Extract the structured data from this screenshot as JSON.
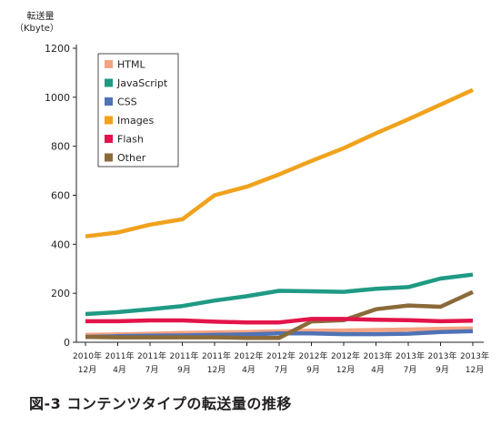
{
  "caption": "図-3 コンテンツタイプの転送量の推移",
  "chart_data": {
    "type": "line",
    "ylabel_line1": "転送量",
    "ylabel_line2": "（Kbyte）",
    "ylim": [
      0,
      1200
    ],
    "yticks": [
      0,
      200,
      400,
      600,
      800,
      1000,
      1200
    ],
    "grid": false,
    "legend_position": "top-left",
    "categories": [
      {
        "year": "2010年",
        "month": "12月"
      },
      {
        "year": "2011年",
        "month": "4月"
      },
      {
        "year": "2011年",
        "month": "7月"
      },
      {
        "year": "2011年",
        "month": "9月"
      },
      {
        "year": "2011年",
        "month": "12月"
      },
      {
        "year": "2012年",
        "month": "4月"
      },
      {
        "year": "2012年",
        "month": "7月"
      },
      {
        "year": "2012年",
        "month": "9月"
      },
      {
        "year": "2012年",
        "month": "12月"
      },
      {
        "year": "2013年",
        "month": "4月"
      },
      {
        "year": "2013年",
        "month": "7月"
      },
      {
        "year": "2013年",
        "month": "9月"
      },
      {
        "year": "2013年",
        "month": "12月"
      }
    ],
    "series": [
      {
        "name": "HTML",
        "color": "#f4a382",
        "values": [
          30,
          32,
          35,
          38,
          40,
          42,
          45,
          47,
          48,
          50,
          52,
          55,
          57
        ]
      },
      {
        "name": "JavaScript",
        "color": "#1f9a84",
        "values": [
          115,
          123,
          135,
          148,
          170,
          188,
          210,
          208,
          206,
          218,
          225,
          260,
          276
        ]
      },
      {
        "name": "CSS",
        "color": "#4f73b5",
        "values": [
          22,
          25,
          27,
          28,
          30,
          32,
          36,
          36,
          33,
          33,
          35,
          42,
          45
        ]
      },
      {
        "name": "Images",
        "color": "#f0a21d",
        "values": [
          432,
          448,
          480,
          502,
          600,
          635,
          685,
          740,
          792,
          853,
          910,
          970,
          1030
        ]
      },
      {
        "name": "Flash",
        "color": "#e3144a",
        "values": [
          86,
          86,
          89,
          89,
          84,
          81,
          81,
          95,
          95,
          92,
          90,
          86,
          88
        ]
      },
      {
        "name": "Other",
        "color": "#8b6a3a",
        "values": [
          22,
          20,
          20,
          20,
          20,
          18,
          18,
          85,
          90,
          135,
          150,
          145,
          205
        ]
      }
    ]
  }
}
